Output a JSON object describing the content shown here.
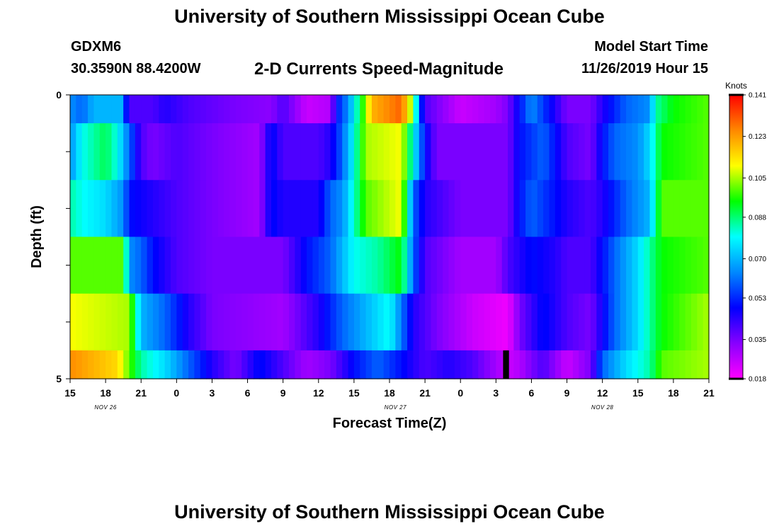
{
  "header": {
    "title": "University of Southern Mississippi Ocean Cube",
    "station_id": "GDXM6",
    "station_coords": "30.3590N 88.4200W",
    "plot_title": "2-D Currents Speed-Magnitude",
    "start_label": "Model Start Time",
    "start_value": "11/26/2019 Hour 15"
  },
  "footer": {
    "title": "University of Southern Mississippi Ocean Cube"
  },
  "chart_data": {
    "type": "heatmap",
    "title": "2-D Currents Speed-Magnitude",
    "xlabel": "Forecast Time(Z)",
    "ylabel": "Depth (ft)",
    "ylim": [
      0,
      5
    ],
    "y_ticks": [
      "0",
      "5"
    ],
    "x_tick_labels": [
      "15",
      "18",
      "21",
      "0",
      "3",
      "6",
      "9",
      "12",
      "15",
      "18",
      "21",
      "0",
      "3",
      "6",
      "9",
      "12",
      "15",
      "18",
      "21"
    ],
    "date_labels": [
      {
        "text": "NOV 26",
        "hour": 3
      },
      {
        "text": "NOV 27",
        "hour": 27.5
      },
      {
        "text": "NOV 28",
        "hour": 45
      }
    ],
    "x_start_hour": 0,
    "x_end_hour": 54,
    "colorbar": {
      "unit": "Knots",
      "tick_labels": [
        "0.141",
        "0.123",
        "0.105",
        "0.088",
        "0.070",
        "0.053",
        "0.035",
        "0.018"
      ],
      "min": 0.018,
      "max": 0.141,
      "colors": [
        "#ff00ff",
        "#8800ff",
        "#0000ff",
        "#0088ff",
        "#00ffff",
        "#00ff00",
        "#ffff00",
        "#ff8800",
        "#ff0000"
      ]
    },
    "rows": [
      {
        "depth_from": 0,
        "depth_to": 0.5,
        "anchors": [
          [
            0,
            0.065
          ],
          [
            1,
            0.06
          ],
          [
            2,
            0.07
          ],
          [
            4.3,
            0.07
          ],
          [
            5,
            0.04
          ],
          [
            7,
            0.04
          ],
          [
            8,
            0.045
          ],
          [
            10,
            0.04
          ],
          [
            14,
            0.035
          ],
          [
            17,
            0.033
          ],
          [
            18,
            0.04
          ],
          [
            20,
            0.025
          ],
          [
            22,
            0.028
          ],
          [
            22.5,
            0.05
          ],
          [
            23.5,
            0.065
          ],
          [
            24.5,
            0.09
          ],
          [
            25.5,
            0.12
          ],
          [
            28,
            0.13
          ],
          [
            29,
            0.1
          ],
          [
            29.5,
            0.06
          ],
          [
            30,
            0.04
          ],
          [
            33,
            0.025
          ],
          [
            36,
            0.03
          ],
          [
            37,
            0.035
          ],
          [
            38,
            0.05
          ],
          [
            39,
            0.065
          ],
          [
            41,
            0.045
          ],
          [
            42,
            0.035
          ],
          [
            44,
            0.035
          ],
          [
            45,
            0.045
          ],
          [
            47,
            0.06
          ],
          [
            49,
            0.065
          ],
          [
            49.5,
            0.085
          ],
          [
            51,
            0.095
          ],
          [
            54,
            0.1
          ]
        ]
      },
      {
        "depth_from": 0.5,
        "depth_to": 1.5,
        "anchors": [
          [
            0,
            0.065
          ],
          [
            1,
            0.08
          ],
          [
            2,
            0.085
          ],
          [
            3,
            0.09
          ],
          [
            4,
            0.08
          ],
          [
            5,
            0.06
          ],
          [
            6,
            0.04
          ],
          [
            7,
            0.035
          ],
          [
            9,
            0.04
          ],
          [
            12,
            0.035
          ],
          [
            16,
            0.03
          ],
          [
            17,
            0.05
          ],
          [
            18,
            0.04
          ],
          [
            21,
            0.04
          ],
          [
            22,
            0.045
          ],
          [
            23,
            0.06
          ],
          [
            24,
            0.08
          ],
          [
            25,
            0.105
          ],
          [
            28,
            0.11
          ],
          [
            29,
            0.08
          ],
          [
            30,
            0.05
          ],
          [
            31,
            0.035
          ],
          [
            37,
            0.035
          ],
          [
            38,
            0.05
          ],
          [
            40,
            0.06
          ],
          [
            41,
            0.05
          ],
          [
            42,
            0.04
          ],
          [
            44,
            0.035
          ],
          [
            45,
            0.05
          ],
          [
            46,
            0.06
          ],
          [
            48,
            0.065
          ],
          [
            49,
            0.075
          ],
          [
            50,
            0.095
          ],
          [
            54,
            0.1
          ]
        ]
      },
      {
        "depth_from": 1.5,
        "depth_to": 2.5,
        "anchors": [
          [
            0,
            0.085
          ],
          [
            1,
            0.08
          ],
          [
            3,
            0.075
          ],
          [
            4.5,
            0.065
          ],
          [
            5,
            0.05
          ],
          [
            7,
            0.045
          ],
          [
            9,
            0.04
          ],
          [
            12,
            0.035
          ],
          [
            16,
            0.03
          ],
          [
            17,
            0.05
          ],
          [
            18,
            0.045
          ],
          [
            21,
            0.045
          ],
          [
            22,
            0.06
          ],
          [
            23,
            0.065
          ],
          [
            25,
            0.1
          ],
          [
            28,
            0.11
          ],
          [
            29,
            0.06
          ],
          [
            30,
            0.045
          ],
          [
            33,
            0.035
          ],
          [
            37,
            0.035
          ],
          [
            38,
            0.05
          ],
          [
            39,
            0.06
          ],
          [
            41,
            0.05
          ],
          [
            42,
            0.045
          ],
          [
            44,
            0.04
          ],
          [
            45,
            0.045
          ],
          [
            47,
            0.06
          ],
          [
            49,
            0.07
          ],
          [
            50,
            0.1
          ],
          [
            54,
            0.1
          ]
        ]
      },
      {
        "depth_from": 2.5,
        "depth_to": 3.5,
        "anchors": [
          [
            0,
            0.1
          ],
          [
            4.5,
            0.1
          ],
          [
            5,
            0.065
          ],
          [
            6,
            0.06
          ],
          [
            7,
            0.05
          ],
          [
            9,
            0.04
          ],
          [
            12,
            0.035
          ],
          [
            18,
            0.035
          ],
          [
            20,
            0.05
          ],
          [
            22,
            0.06
          ],
          [
            24,
            0.08
          ],
          [
            26,
            0.085
          ],
          [
            28,
            0.095
          ],
          [
            29,
            0.06
          ],
          [
            30,
            0.04
          ],
          [
            33,
            0.03
          ],
          [
            36,
            0.03
          ],
          [
            37,
            0.04
          ],
          [
            39,
            0.05
          ],
          [
            41,
            0.045
          ],
          [
            42,
            0.04
          ],
          [
            44,
            0.04
          ],
          [
            46,
            0.06
          ],
          [
            48,
            0.075
          ],
          [
            50,
            0.095
          ],
          [
            54,
            0.1
          ]
        ]
      },
      {
        "depth_from": 3.5,
        "depth_to": 4.5,
        "anchors": [
          [
            0,
            0.11
          ],
          [
            5,
            0.105
          ],
          [
            6,
            0.07
          ],
          [
            7,
            0.065
          ],
          [
            8,
            0.06
          ],
          [
            10,
            0.045
          ],
          [
            12,
            0.035
          ],
          [
            18,
            0.03
          ],
          [
            21,
            0.045
          ],
          [
            23,
            0.06
          ],
          [
            25,
            0.07
          ],
          [
            27,
            0.08
          ],
          [
            29,
            0.045
          ],
          [
            31,
            0.035
          ],
          [
            34,
            0.025
          ],
          [
            37,
            0.02
          ],
          [
            38,
            0.035
          ],
          [
            40,
            0.05
          ],
          [
            42,
            0.04
          ],
          [
            44,
            0.035
          ],
          [
            46,
            0.06
          ],
          [
            48,
            0.075
          ],
          [
            50,
            0.095
          ],
          [
            54,
            0.105
          ]
        ]
      },
      {
        "depth_from": 4.5,
        "depth_to": 5,
        "anchors": [
          [
            0,
            0.125
          ],
          [
            4,
            0.115
          ],
          [
            6,
            0.085
          ],
          [
            8,
            0.075
          ],
          [
            10,
            0.06
          ],
          [
            12,
            0.045
          ],
          [
            14,
            0.035
          ],
          [
            16,
            0.05
          ],
          [
            18,
            0.04
          ],
          [
            20,
            0.03
          ],
          [
            22,
            0.035
          ],
          [
            24,
            0.05
          ],
          [
            26,
            0.06
          ],
          [
            28,
            0.05
          ],
          [
            30,
            0.04
          ],
          [
            32,
            0.045
          ],
          [
            34,
            0.04
          ],
          [
            36,
            0.03
          ],
          [
            37,
            0.025
          ],
          [
            38,
            0.028
          ],
          [
            39,
            0.035
          ],
          [
            40,
            0.04
          ],
          [
            42,
            0.025
          ],
          [
            44,
            0.035
          ],
          [
            45,
            0.06
          ],
          [
            47,
            0.075
          ],
          [
            49,
            0.085
          ],
          [
            50,
            0.1
          ],
          [
            54,
            0.105
          ]
        ]
      }
    ],
    "no_data_marker": {
      "hour_from": 36.6,
      "hour_to": 37.1,
      "depth_from": 4.5,
      "depth_to": 5
    }
  }
}
